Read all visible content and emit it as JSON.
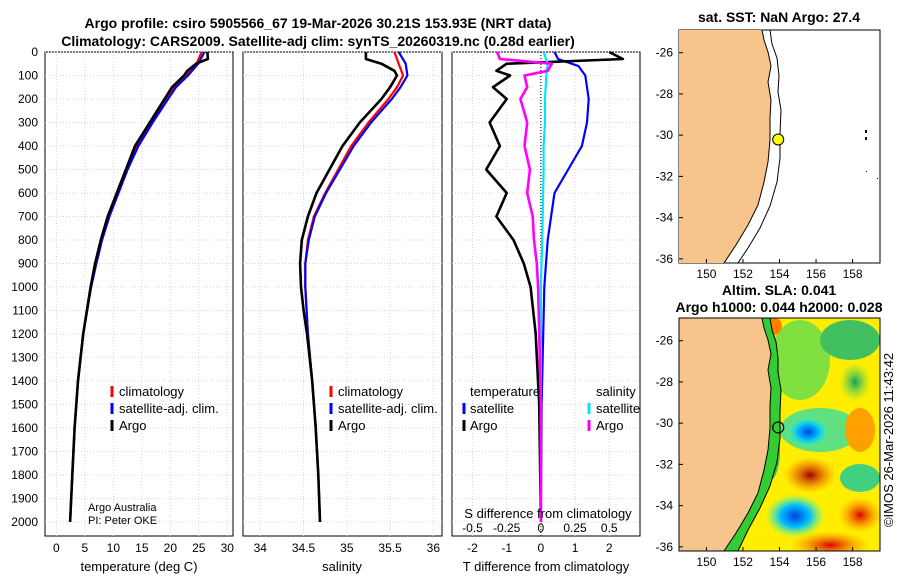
{
  "header": {
    "title_line1": "Argo profile: csiro 5905566_67 19-Mar-2026 30.21S 153.93E (NRT data)",
    "title_line2": "Climatology: CARS2009. Satellite-adj clim: synTS_20260319.nc (0.28d earlier)"
  },
  "credit": {
    "line1": "Argo Australia",
    "line2": "PI: Peter OKE",
    "stamp": "©IMOS 26-Mar-2026 11:43:42"
  },
  "colors": {
    "climatology": "#ff0000",
    "satellite": "#0000ff",
    "argo": "#000000",
    "salinity_satellite": "#00e5ff",
    "salinity_argo": "#ff00ff",
    "land": "#f7c48c"
  },
  "depth_axis": {
    "ticks": [
      "0",
      "100",
      "200",
      "300",
      "400",
      "500",
      "600",
      "700",
      "800",
      "900",
      "1000",
      "1100",
      "1200",
      "1300",
      "1400",
      "1500",
      "1600",
      "1700",
      "1800",
      "1900",
      "2000"
    ]
  },
  "chart_data": [
    {
      "type": "line",
      "name": "temperature-profile",
      "xlabel": "temperature (deg C)",
      "xlim": [
        -2,
        31
      ],
      "ylim": [
        0,
        2060
      ],
      "xticks": [
        "0",
        "5",
        "10",
        "15",
        "20",
        "25",
        "30"
      ],
      "legend": [
        "climatology",
        "satellite-adj. clim.",
        "Argo"
      ],
      "series": [
        {
          "name": "climatology",
          "depth": [
            0,
            50,
            100,
            150,
            200,
            300,
            400,
            500,
            600,
            700,
            800,
            900,
            1000,
            1200,
            1400,
            1600,
            1800,
            2000
          ],
          "values": [
            25.5,
            24.6,
            22.8,
            20.6,
            19.2,
            16.6,
            14.2,
            12.4,
            10.8,
            9.2,
            8.0,
            7.0,
            6.1,
            4.7,
            3.8,
            3.2,
            2.8,
            2.4
          ]
        },
        {
          "name": "satellite-adj. clim.",
          "depth": [
            0,
            50,
            100,
            150,
            200,
            300,
            400,
            500,
            600,
            700,
            800,
            900,
            1000,
            1200,
            1400,
            1600,
            1800,
            2000
          ],
          "values": [
            26.0,
            24.9,
            23.1,
            21.0,
            19.6,
            16.9,
            14.4,
            12.5,
            10.9,
            9.3,
            8.0,
            7.0,
            6.1,
            4.7,
            3.8,
            3.2,
            2.8,
            2.4
          ]
        },
        {
          "name": "Argo",
          "depth": [
            0,
            30,
            50,
            80,
            100,
            150,
            200,
            300,
            400,
            500,
            600,
            700,
            800,
            900,
            1000,
            1200,
            1400,
            1600,
            1800,
            2000
          ],
          "values": [
            26.5,
            26.6,
            24.5,
            23.0,
            22.4,
            20.3,
            19.0,
            16.4,
            13.8,
            12.2,
            10.6,
            9.0,
            7.8,
            6.8,
            6.0,
            4.7,
            3.8,
            3.2,
            2.8,
            2.4
          ]
        }
      ]
    },
    {
      "type": "line",
      "name": "salinity-profile",
      "xlabel": "salinity",
      "xlim": [
        33.8,
        36.1
      ],
      "ylim": [
        0,
        2060
      ],
      "xticks": [
        "34",
        "34.5",
        "35",
        "35.5",
        "36"
      ],
      "legend": [
        "climatology",
        "satellite-adj. clim.",
        "Argo"
      ],
      "series": [
        {
          "name": "climatology",
          "depth": [
            0,
            50,
            100,
            150,
            200,
            300,
            400,
            500,
            600,
            700,
            800,
            900,
            1000,
            1200,
            1400,
            1600,
            1800,
            2000
          ],
          "values": [
            35.55,
            35.6,
            35.65,
            35.58,
            35.48,
            35.25,
            35.05,
            34.9,
            34.75,
            34.62,
            34.55,
            34.52,
            34.52,
            34.55,
            34.6,
            34.64,
            34.67,
            34.69
          ]
        },
        {
          "name": "satellite-adj. clim.",
          "depth": [
            0,
            50,
            100,
            150,
            200,
            300,
            400,
            500,
            600,
            700,
            800,
            900,
            1000,
            1200,
            1400,
            1600,
            1800,
            2000
          ],
          "values": [
            35.6,
            35.68,
            35.7,
            35.62,
            35.52,
            35.28,
            35.08,
            34.92,
            34.76,
            34.63,
            34.56,
            34.52,
            34.52,
            34.55,
            34.6,
            34.64,
            34.67,
            34.69
          ]
        },
        {
          "name": "Argo",
          "depth": [
            0,
            30,
            50,
            80,
            100,
            150,
            200,
            300,
            400,
            500,
            600,
            700,
            800,
            900,
            1000,
            1100,
            1200,
            1400,
            1600,
            1800,
            2000
          ],
          "values": [
            35.22,
            35.22,
            35.4,
            35.55,
            35.58,
            35.5,
            35.4,
            35.15,
            34.95,
            34.8,
            34.65,
            34.55,
            34.48,
            34.46,
            34.47,
            34.5,
            34.54,
            34.6,
            34.64,
            34.67,
            34.69
          ]
        }
      ]
    },
    {
      "type": "line",
      "name": "difference-profile",
      "xlabel": "T difference from climatology",
      "xlabel_top": "S difference from climatology",
      "xlim": [
        -2.6,
        2.9
      ],
      "ylim": [
        0,
        2060
      ],
      "xticks": [
        "-2",
        "-1",
        "0",
        "1",
        "2"
      ],
      "xticks_salinity": [
        "-0.5",
        "-0.25",
        "0",
        "0.25",
        "0.5"
      ],
      "legend_temperature": {
        "heading": "temperature",
        "items": [
          "satellite",
          "Argo"
        ]
      },
      "legend_salinity": {
        "heading": "salinity",
        "items": [
          "satellite",
          "Argo"
        ]
      },
      "series": [
        {
          "name": "temperature satellite",
          "depth": [
            0,
            30,
            60,
            100,
            200,
            300,
            400,
            500,
            600,
            800,
            1000,
            1500,
            2000
          ],
          "values": [
            0.4,
            0.5,
            1.1,
            1.3,
            1.4,
            1.35,
            1.2,
            0.8,
            0.4,
            0.2,
            0.1,
            0.02,
            0
          ]
        },
        {
          "name": "temperature Argo",
          "depth": [
            0,
            30,
            50,
            80,
            100,
            150,
            200,
            300,
            400,
            500,
            600,
            700,
            800,
            900,
            1000,
            1200,
            1500,
            2000
          ],
          "values": [
            2.0,
            2.4,
            -1.0,
            -1.3,
            -0.9,
            -1.4,
            -1.0,
            -1.5,
            -1.2,
            -1.6,
            -1.0,
            -1.3,
            -0.8,
            -0.5,
            -0.3,
            -0.15,
            -0.05,
            0
          ]
        },
        {
          "name": "salinity satellite",
          "depth": [
            0,
            50,
            100,
            200,
            300,
            400,
            500,
            800,
            1000,
            1500,
            2000
          ],
          "values": [
            0.02,
            0.05,
            0.04,
            0.03,
            0.03,
            0.02,
            0.02,
            0.01,
            0,
            0,
            0
          ]
        },
        {
          "name": "salinity Argo",
          "depth": [
            0,
            30,
            50,
            80,
            100,
            150,
            200,
            300,
            400,
            500,
            600,
            700,
            800,
            900,
            1000,
            1500,
            2000
          ],
          "values": [
            -0.32,
            -0.3,
            0.08,
            0.05,
            -0.12,
            -0.1,
            -0.15,
            -0.1,
            -0.12,
            -0.08,
            -0.1,
            -0.06,
            -0.05,
            -0.03,
            -0.02,
            0,
            0
          ]
        }
      ]
    },
    {
      "type": "map",
      "name": "sst-map",
      "title": "sat. SST: NaN Argo: 27.4",
      "xlim": [
        148.5,
        159.5
      ],
      "ylim": [
        -36.2,
        -24.9
      ],
      "xticks": [
        "150",
        "152",
        "154",
        "156",
        "158"
      ],
      "yticks": [
        "-26",
        "-28",
        "-30",
        "-32",
        "-34",
        "-36"
      ],
      "argo_position": {
        "lon": 153.93,
        "lat": -30.21
      }
    },
    {
      "type": "heatmap",
      "name": "sla-map",
      "title_line1": "Altim. SLA: 0.041",
      "title_line2": "Argo h1000: 0.044 h2000: 0.028",
      "xlim": [
        148.5,
        159.5
      ],
      "ylim": [
        -36.2,
        -24.9
      ],
      "xticks": [
        "150",
        "152",
        "154",
        "156",
        "158"
      ],
      "yticks": [
        "-26",
        "-28",
        "-30",
        "-32",
        "-34",
        "-36"
      ],
      "argo_position": {
        "lon": 153.93,
        "lat": -30.21
      }
    }
  ]
}
